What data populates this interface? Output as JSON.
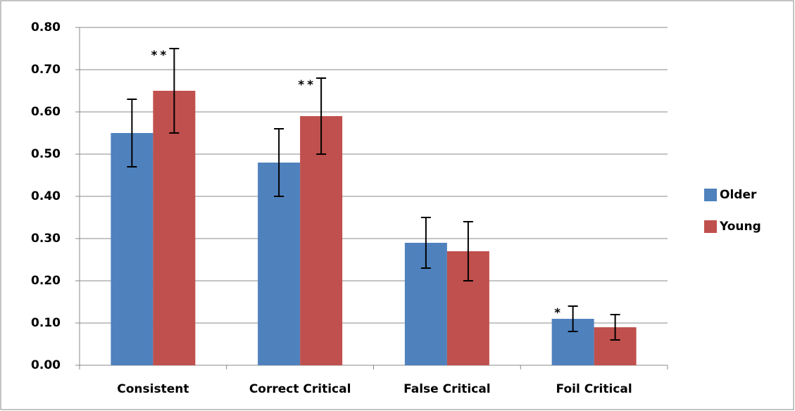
{
  "chart_data": {
    "type": "bar",
    "categories": [
      "Consistent",
      "Correct Critical",
      "False Critical",
      "Foil Critical"
    ],
    "series": [
      {
        "name": "Older",
        "color": "#4f81bd",
        "values": [
          0.55,
          0.48,
          0.29,
          0.11
        ],
        "errors": [
          0.08,
          0.08,
          0.06,
          0.03
        ]
      },
      {
        "name": "Young",
        "color": "#c0504d",
        "values": [
          0.65,
          0.59,
          0.27,
          0.09
        ],
        "errors": [
          0.1,
          0.09,
          0.07,
          0.03
        ]
      }
    ],
    "ylim": [
      0,
      0.8
    ],
    "yticks": [
      {
        "value": 0,
        "label": "0.00"
      },
      {
        "value": 0.1,
        "label": "0.10"
      },
      {
        "value": 0.2,
        "label": "0.20"
      },
      {
        "value": 0.3,
        "label": "0.30"
      },
      {
        "value": 0.4,
        "label": "0.40"
      },
      {
        "value": 0.5,
        "label": "0.50"
      },
      {
        "value": 0.6,
        "label": "0.60"
      },
      {
        "value": 0.7,
        "label": "0.70"
      },
      {
        "value": 0.8,
        "label": "0.80"
      }
    ],
    "grid": true,
    "legend": "right",
    "annotations": [
      {
        "text": "**",
        "category": 0,
        "series": 1
      },
      {
        "text": "**",
        "category": 1,
        "series": 1
      },
      {
        "text": "*",
        "category": 3,
        "series": 0
      }
    ]
  }
}
